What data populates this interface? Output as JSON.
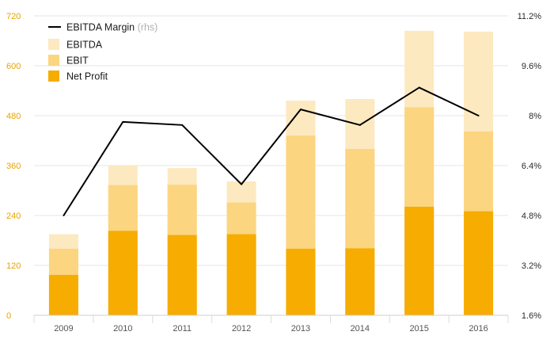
{
  "chart_data": {
    "type": "bar",
    "stacked": false,
    "categories": [
      "2009",
      "2010",
      "2011",
      "2012",
      "2013",
      "2014",
      "2015",
      "2016"
    ],
    "series": [
      {
        "name": "EBITDA",
        "axis": "left",
        "values": [
          195,
          360,
          354,
          322,
          516,
          520,
          684,
          682
        ]
      },
      {
        "name": "EBIT",
        "axis": "left",
        "values": [
          160,
          313,
          314,
          271,
          432,
          400,
          500,
          442
        ]
      },
      {
        "name": "Net Profit",
        "axis": "left",
        "values": [
          97,
          203,
          193,
          195,
          160,
          161,
          261,
          250
        ]
      },
      {
        "name": "EBITDA Margin",
        "name_suffix": "(rhs)",
        "type": "line",
        "axis": "right",
        "values": [
          4.8,
          7.8,
          7.7,
          5.8,
          8.2,
          7.7,
          8.9,
          8.0
        ]
      }
    ],
    "y_left": {
      "ylim": [
        0,
        720
      ],
      "ticks": [
        "0",
        "120",
        "240",
        "360",
        "480",
        "600",
        "720"
      ]
    },
    "y_right": {
      "ylim": [
        1.6,
        11.2
      ],
      "ticks": [
        "1.6%",
        "3.2%",
        "4.8%",
        "6.4%",
        "8%",
        "9.6%",
        "11.2%"
      ]
    },
    "grid": true,
    "legend_position": "top-left",
    "colors": {
      "EBITDA": "#fde9c0",
      "EBIT": "#fbd57f",
      "Net Profit": "#f6ac00",
      "EBITDA Margin": "#000000",
      "left_tick_text": "#e8a300",
      "grid": "#e6e6e6"
    }
  }
}
